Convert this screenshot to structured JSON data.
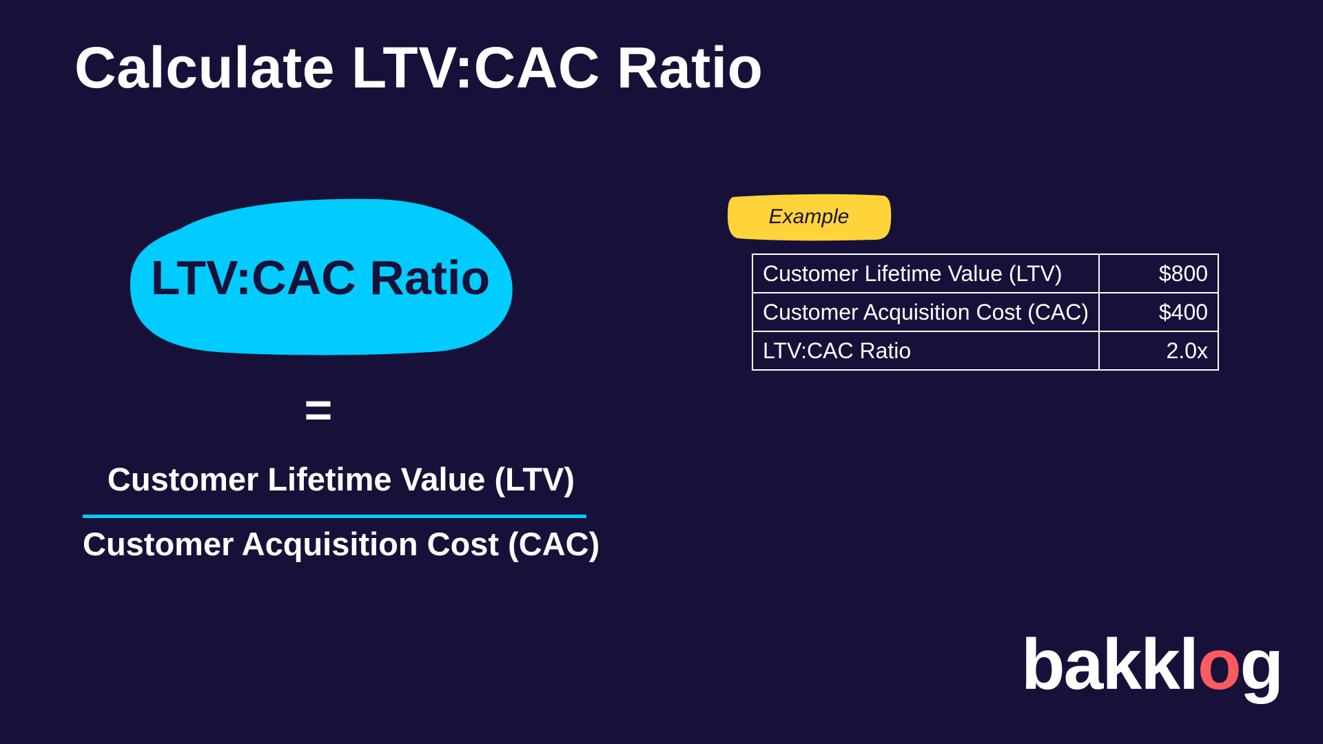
{
  "slide": {
    "title": "Calculate LTV:CAC Ratio"
  },
  "formula": {
    "result_label": "LTV:CAC Ratio",
    "equals_sign": "=",
    "numerator": "Customer Lifetime Value (LTV)",
    "denominator": "Customer Acquisition Cost (CAC)"
  },
  "example": {
    "badge": "Example",
    "rows": [
      {
        "label": "Customer Lifetime Value (LTV)",
        "value": "$800"
      },
      {
        "label": "Customer Acquisition Cost (CAC)",
        "value": "$400"
      },
      {
        "label": "LTV:CAC Ratio",
        "value": "2.0x"
      }
    ]
  },
  "logo": {
    "text_before": "bakkl",
    "text_target": "o",
    "text_after": "g"
  },
  "colors": {
    "background": "#17113a",
    "accent_cyan": "#00ccff",
    "accent_yellow": "#ffd43b",
    "logo_red": "#ff5a5f",
    "text": "#ffffff"
  }
}
